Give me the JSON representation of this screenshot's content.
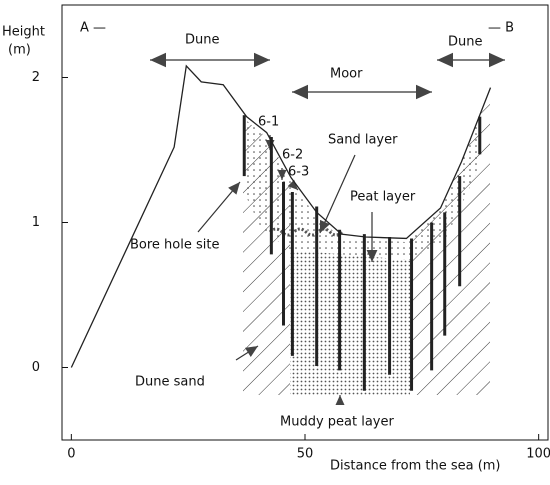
{
  "chart_data": {
    "type": "line",
    "y_label": "Height",
    "y_unit": "(m)",
    "x_label": "Distance from the sea (m)",
    "end_labels": [
      "A —",
      "— B"
    ],
    "xlim": [
      -2,
      102
    ],
    "ylim": [
      -0.5,
      2.5
    ],
    "xticks": [
      0,
      50,
      100
    ],
    "yticks": [
      0,
      1,
      2
    ],
    "color": "#222",
    "x": [
      0,
      22,
      24.6,
      27.8,
      32.5,
      37.5,
      41.8,
      47,
      52.5,
      57.8,
      63,
      71.7,
      79,
      83.5,
      89.7
    ],
    "values": [
      0,
      1.52,
      2.08,
      1.97,
      1.95,
      1.73,
      1.62,
      1.31,
      1.07,
      0.92,
      0.9,
      0.89,
      1.1,
      1.42,
      1.93
    ],
    "bore_holes": {
      "x": [
        37,
        42.8,
        45.4,
        47.3,
        52.5,
        57.4,
        62.7,
        68.1,
        72.8,
        77.1,
        79.9,
        83.1,
        87.4
      ],
      "top": [
        1.74,
        1.59,
        1.28,
        1.21,
        1.11,
        0.95,
        0.92,
        0.9,
        0.89,
        1.0,
        1.07,
        1.32,
        1.73
      ],
      "bottom": [
        1.32,
        0.78,
        0.29,
        0.08,
        0.01,
        -0.02,
        -0.16,
        -0.05,
        -0.16,
        -0.02,
        0.22,
        0.56,
        1.47
      ]
    },
    "annotations": [
      "Dune",
      "Moor",
      "Dune",
      "6-1",
      "6-2",
      "6-3",
      "Sand layer",
      "Peat layer",
      "Bore hole site",
      "Dune sand",
      "Muddy peat layer"
    ]
  }
}
